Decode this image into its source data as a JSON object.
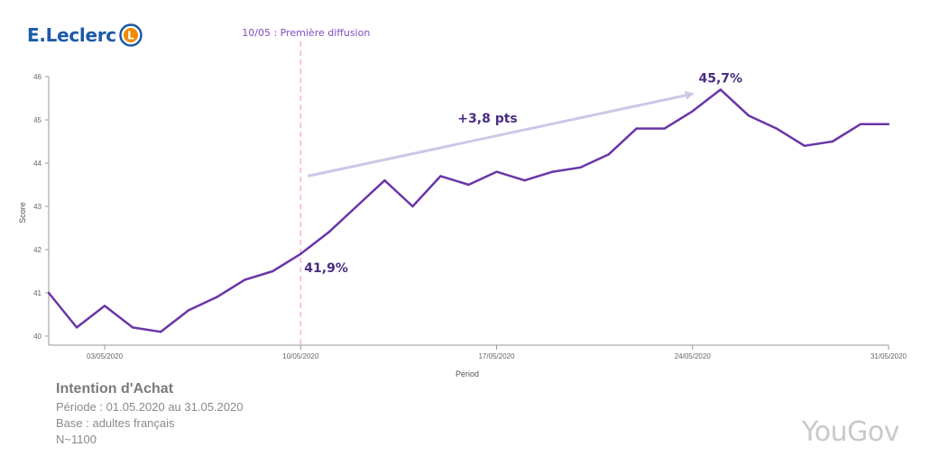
{
  "brand": {
    "logo_text": "E.Leclerc",
    "logo_letter": "L",
    "colors": {
      "logo_blue": "#1d5aa8",
      "logo_orange": "#f08a00"
    }
  },
  "chart_data": {
    "type": "line",
    "title": "Intention d'Achat",
    "xlabel": "Period",
    "ylabel": "Score",
    "ylim": [
      40,
      46
    ],
    "yticks": [
      40,
      41,
      42,
      43,
      44,
      45,
      46
    ],
    "xticks": [
      {
        "day": 3,
        "label": "03/05/2020"
      },
      {
        "day": 10,
        "label": "10/05/2020"
      },
      {
        "day": 17,
        "label": "17/05/2020"
      },
      {
        "day": 24,
        "label": "24/05/2020"
      },
      {
        "day": 31,
        "label": "31/05/2020"
      }
    ],
    "x": [
      1,
      2,
      3,
      4,
      5,
      6,
      7,
      8,
      9,
      10,
      11,
      12,
      13,
      14,
      15,
      16,
      17,
      18,
      19,
      20,
      21,
      22,
      23,
      24,
      25,
      26,
      27,
      28,
      29,
      30,
      31
    ],
    "series": [
      {
        "name": "Intention d'Achat",
        "color": "#6a35a8",
        "values": [
          41.0,
          40.2,
          40.7,
          40.2,
          40.1,
          40.6,
          40.9,
          41.3,
          41.5,
          41.9,
          42.4,
          43.0,
          43.6,
          43.0,
          43.7,
          43.5,
          43.8,
          43.6,
          43.8,
          43.9,
          44.2,
          44.8,
          44.8,
          45.2,
          45.7,
          45.1,
          44.8,
          44.4,
          44.5,
          44.9,
          44.9
        ]
      }
    ],
    "event": {
      "day": 10,
      "label": "10/05 : Première diffusion"
    },
    "annotations": [
      {
        "day": 10,
        "value": 41.9,
        "text": "41,9%"
      },
      {
        "day": 25,
        "value": 45.7,
        "text": "45,7%"
      }
    ],
    "arrow": {
      "label": "+3,8 pts",
      "from_day": 10,
      "from_value": 43.7,
      "to_day": 24,
      "to_value": 45.6,
      "color": "#cfc6e8"
    }
  },
  "footer": {
    "title": "Intention d'Achat",
    "period": "Période : 01.05.2020 au 31.05.2020",
    "base": "Base : adultes français",
    "n": "N~1100"
  },
  "watermark": "YouGov"
}
